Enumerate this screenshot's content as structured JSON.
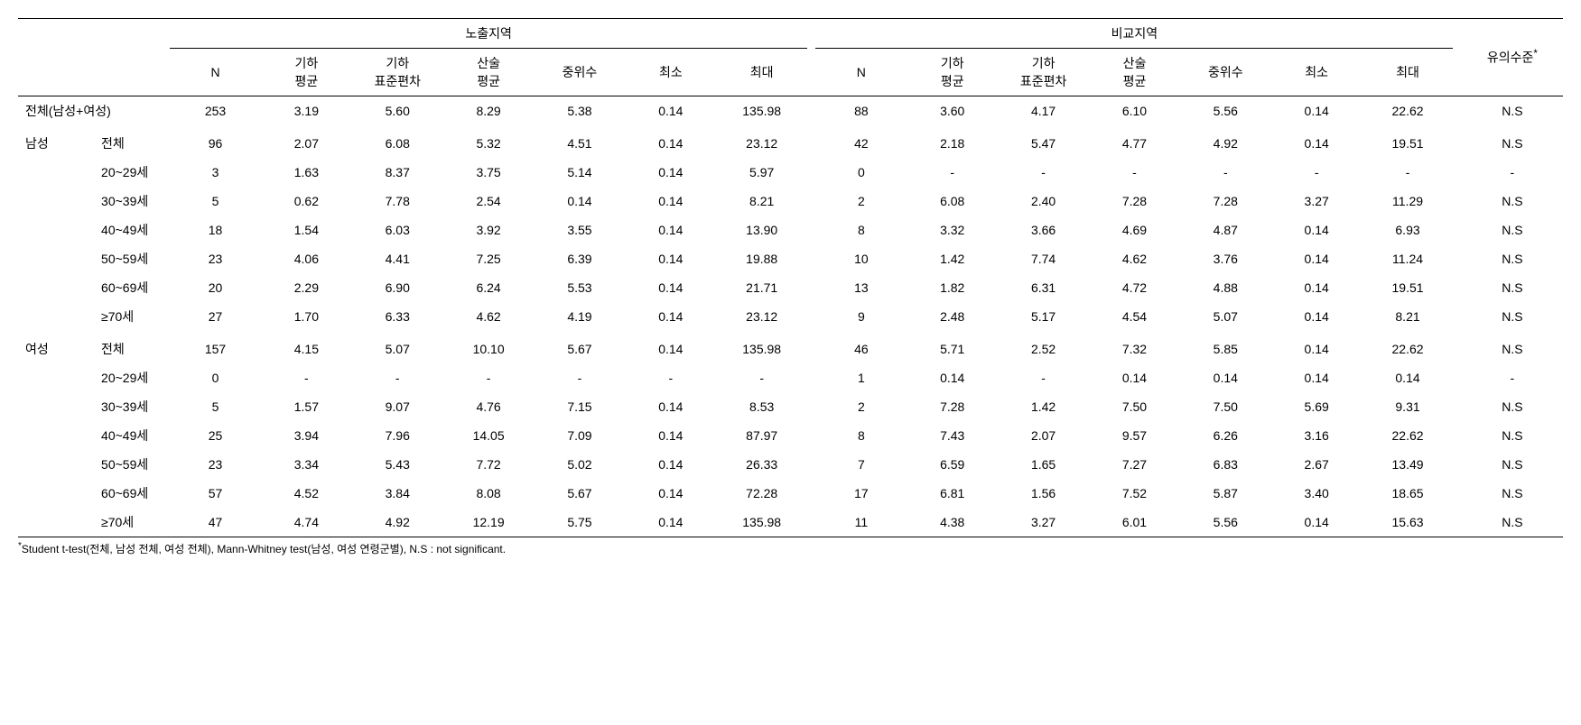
{
  "headers": {
    "group1": "노출지역",
    "group2": "비교지역",
    "sig": "유의수준",
    "sig_sup": "*",
    "cols": [
      "N",
      "기하\n평균",
      "기하\n표준편차",
      "산술\n평균",
      "중위수",
      "최소",
      "최대"
    ]
  },
  "rows": [
    {
      "l1": "전체(남성+여성)",
      "l2": "",
      "colspan": 2,
      "section": true,
      "g1": [
        "253",
        "3.19",
        "5.60",
        "8.29",
        "5.38",
        "0.14",
        "135.98"
      ],
      "g2": [
        "88",
        "3.60",
        "4.17",
        "6.10",
        "5.56",
        "0.14",
        "22.62"
      ],
      "sig": "N.S"
    },
    {
      "l1": "남성",
      "l2": "전체",
      "section": true,
      "g1": [
        "96",
        "2.07",
        "6.08",
        "5.32",
        "4.51",
        "0.14",
        "23.12"
      ],
      "g2": [
        "42",
        "2.18",
        "5.47",
        "4.77",
        "4.92",
        "0.14",
        "19.51"
      ],
      "sig": "N.S"
    },
    {
      "l1": "",
      "l2": "20~29세",
      "g1": [
        "3",
        "1.63",
        "8.37",
        "3.75",
        "5.14",
        "0.14",
        "5.97"
      ],
      "g2": [
        "0",
        "-",
        "-",
        "-",
        "-",
        "-",
        "-"
      ],
      "sig": "-"
    },
    {
      "l1": "",
      "l2": "30~39세",
      "g1": [
        "5",
        "0.62",
        "7.78",
        "2.54",
        "0.14",
        "0.14",
        "8.21"
      ],
      "g2": [
        "2",
        "6.08",
        "2.40",
        "7.28",
        "7.28",
        "3.27",
        "11.29"
      ],
      "sig": "N.S"
    },
    {
      "l1": "",
      "l2": "40~49세",
      "g1": [
        "18",
        "1.54",
        "6.03",
        "3.92",
        "3.55",
        "0.14",
        "13.90"
      ],
      "g2": [
        "8",
        "3.32",
        "3.66",
        "4.69",
        "4.87",
        "0.14",
        "6.93"
      ],
      "sig": "N.S"
    },
    {
      "l1": "",
      "l2": "50~59세",
      "g1": [
        "23",
        "4.06",
        "4.41",
        "7.25",
        "6.39",
        "0.14",
        "19.88"
      ],
      "g2": [
        "10",
        "1.42",
        "7.74",
        "4.62",
        "3.76",
        "0.14",
        "11.24"
      ],
      "sig": "N.S"
    },
    {
      "l1": "",
      "l2": "60~69세",
      "g1": [
        "20",
        "2.29",
        "6.90",
        "6.24",
        "5.53",
        "0.14",
        "21.71"
      ],
      "g2": [
        "13",
        "1.82",
        "6.31",
        "4.72",
        "4.88",
        "0.14",
        "19.51"
      ],
      "sig": "N.S"
    },
    {
      "l1": "",
      "l2": "≥70세",
      "g1": [
        "27",
        "1.70",
        "6.33",
        "4.62",
        "4.19",
        "0.14",
        "23.12"
      ],
      "g2": [
        "9",
        "2.48",
        "5.17",
        "4.54",
        "5.07",
        "0.14",
        "8.21"
      ],
      "sig": "N.S"
    },
    {
      "l1": "여성",
      "l2": "전체",
      "section": true,
      "g1": [
        "157",
        "4.15",
        "5.07",
        "10.10",
        "5.67",
        "0.14",
        "135.98"
      ],
      "g2": [
        "46",
        "5.71",
        "2.52",
        "7.32",
        "5.85",
        "0.14",
        "22.62"
      ],
      "sig": "N.S"
    },
    {
      "l1": "",
      "l2": "20~29세",
      "g1": [
        "0",
        "-",
        "-",
        "-",
        "-",
        "-",
        "-"
      ],
      "g2": [
        "1",
        "0.14",
        "-",
        "0.14",
        "0.14",
        "0.14",
        "0.14"
      ],
      "sig": "-"
    },
    {
      "l1": "",
      "l2": "30~39세",
      "g1": [
        "5",
        "1.57",
        "9.07",
        "4.76",
        "7.15",
        "0.14",
        "8.53"
      ],
      "g2": [
        "2",
        "7.28",
        "1.42",
        "7.50",
        "7.50",
        "5.69",
        "9.31"
      ],
      "sig": "N.S"
    },
    {
      "l1": "",
      "l2": "40~49세",
      "g1": [
        "25",
        "3.94",
        "7.96",
        "14.05",
        "7.09",
        "0.14",
        "87.97"
      ],
      "g2": [
        "8",
        "7.43",
        "2.07",
        "9.57",
        "6.26",
        "3.16",
        "22.62"
      ],
      "sig": "N.S"
    },
    {
      "l1": "",
      "l2": "50~59세",
      "g1": [
        "23",
        "3.34",
        "5.43",
        "7.72",
        "5.02",
        "0.14",
        "26.33"
      ],
      "g2": [
        "7",
        "6.59",
        "1.65",
        "7.27",
        "6.83",
        "2.67",
        "13.49"
      ],
      "sig": "N.S"
    },
    {
      "l1": "",
      "l2": "60~69세",
      "g1": [
        "57",
        "4.52",
        "3.84",
        "8.08",
        "5.67",
        "0.14",
        "72.28"
      ],
      "g2": [
        "17",
        "6.81",
        "1.56",
        "7.52",
        "5.87",
        "3.40",
        "18.65"
      ],
      "sig": "N.S"
    },
    {
      "l1": "",
      "l2": "≥70세",
      "g1": [
        "47",
        "4.74",
        "4.92",
        "12.19",
        "5.75",
        "0.14",
        "135.98"
      ],
      "g2": [
        "11",
        "4.38",
        "3.27",
        "6.01",
        "5.56",
        "0.14",
        "15.63"
      ],
      "sig": "N.S"
    }
  ],
  "footnote_sup": "*",
  "footnote": "Student t-test(전체, 남성 전체, 여성 전체), Mann-Whitney test(남성, 여성 연령군별), N.S : not significant."
}
